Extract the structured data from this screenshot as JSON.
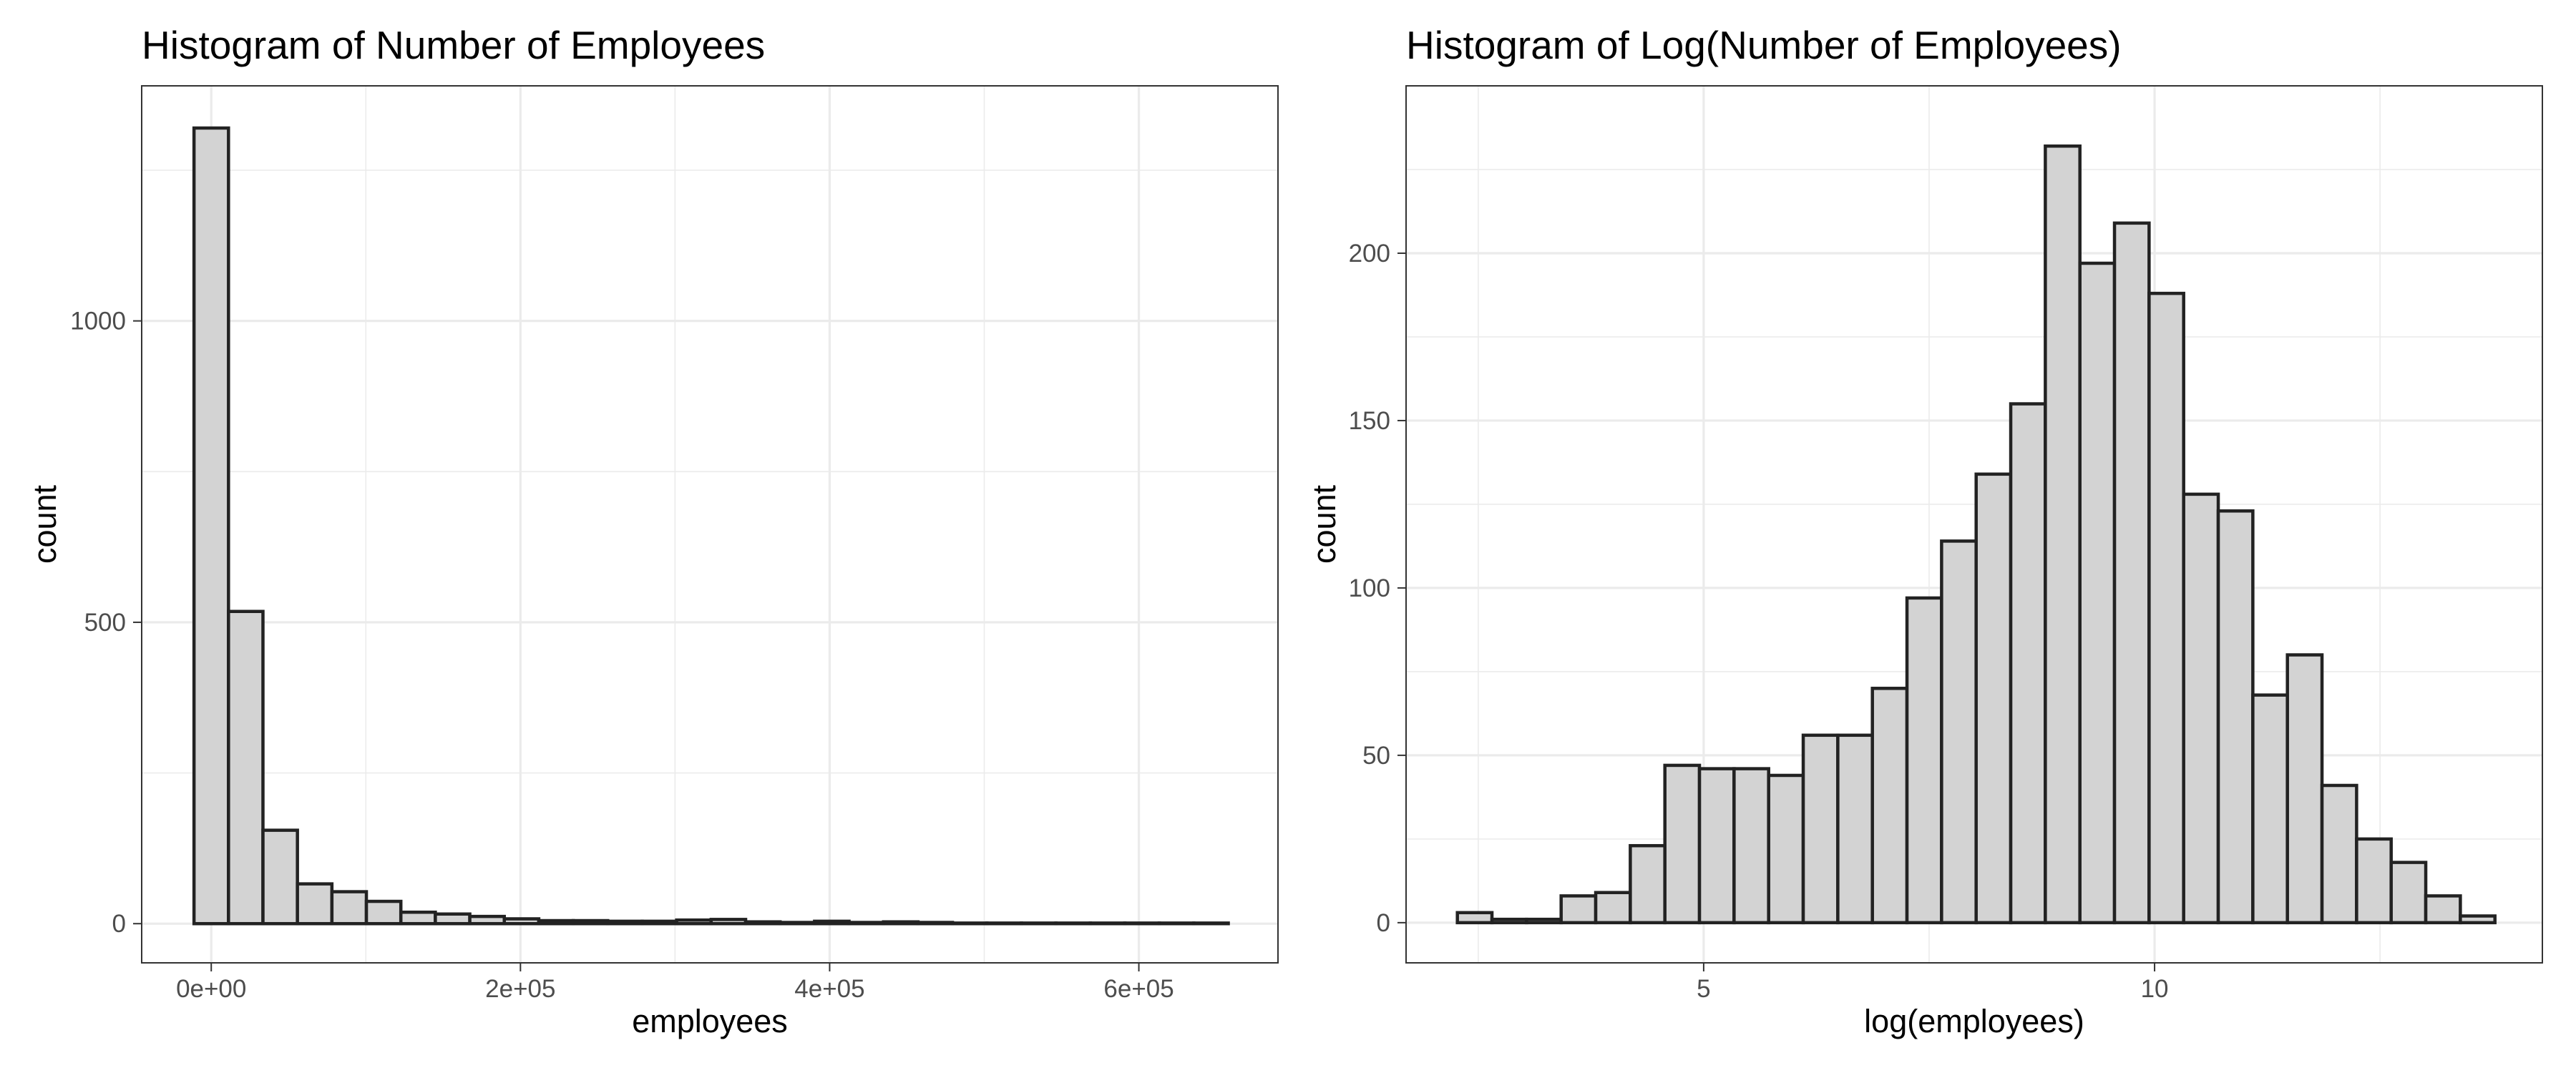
{
  "colors": {
    "bar_fill": "#d3d3d3",
    "bar_stroke": "#222222",
    "grid": "#ebebeb",
    "panel_border": "#333333"
  },
  "chart_data": [
    {
      "type": "bar",
      "title": "Histogram of Number of Employees",
      "xlabel": "employees",
      "ylabel": "count",
      "grid": true,
      "xlim": [
        -45000,
        690000
      ],
      "ylim": [
        -65,
        1390
      ],
      "xticks": [
        0,
        200000,
        400000,
        600000
      ],
      "xtick_labels": [
        "0e+00",
        "2e+05",
        "4e+05",
        "6e+05"
      ],
      "xtick_minor": [
        100000,
        300000,
        500000
      ],
      "yticks": [
        0,
        500,
        1000
      ],
      "ytick_labels": [
        "0",
        "500",
        "1000"
      ],
      "ytick_minor": [
        250,
        750,
        1250
      ],
      "bin_width": 22300,
      "bin_start": -11150,
      "values": [
        1320,
        518,
        155,
        66,
        53,
        37,
        19,
        16,
        12,
        8,
        5,
        5,
        4,
        4,
        6,
        7,
        3,
        2,
        4,
        2,
        3,
        2,
        1,
        1,
        1,
        1,
        1,
        1,
        1,
        1
      ]
    },
    {
      "type": "bar",
      "title": "Histogram of Log(Number of Employees)",
      "xlabel": "log(employees)",
      "ylabel": "count",
      "grid": true,
      "xlim": [
        1.7,
        14.3
      ],
      "ylim": [
        -12,
        250
      ],
      "xticks": [
        5,
        10
      ],
      "xtick_labels": [
        "5",
        "10"
      ],
      "xtick_minor": [
        2.5,
        7.5,
        12.5
      ],
      "yticks": [
        0,
        50,
        100,
        150,
        200
      ],
      "ytick_labels": [
        "0",
        "50",
        "100",
        "150",
        "200"
      ],
      "ytick_minor": [
        25,
        75,
        125,
        175,
        225
      ],
      "bin_width": 0.3835,
      "bin_start": 2.269,
      "values": [
        3,
        1,
        1,
        8,
        9,
        23,
        47,
        46,
        46,
        44,
        56,
        56,
        70,
        97,
        114,
        134,
        155,
        232,
        197,
        209,
        188,
        128,
        123,
        68,
        80,
        41,
        25,
        18,
        8,
        2
      ]
    }
  ]
}
